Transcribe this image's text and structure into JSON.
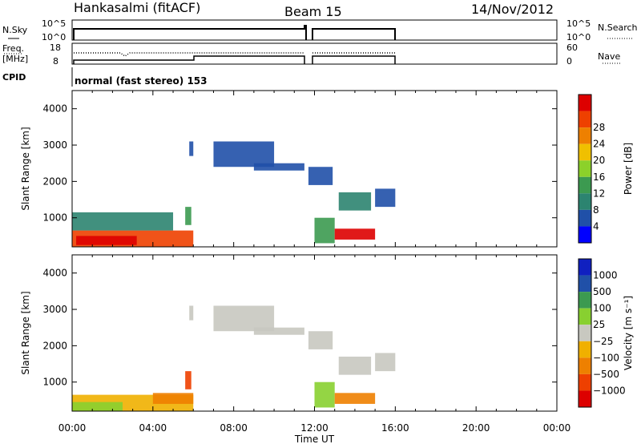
{
  "header": {
    "station": "Hankasalmi (fitACF)",
    "beam": "Beam 15",
    "date": "14/Nov/2012"
  },
  "strip_panels": {
    "nsky": {
      "left_label": "N.Sky",
      "ticks_left": [
        "10^5",
        "10^0"
      ],
      "ticks_right": [
        "10^5",
        "10^0"
      ],
      "right_label": "N.Search"
    },
    "freq": {
      "left_label_top": "Freq.",
      "left_label_unit": "[MHz]",
      "ticks_left": [
        "18",
        "8"
      ],
      "ticks_right": [
        "60",
        "0"
      ],
      "right_label": "Nave"
    },
    "cpid": {
      "label": "CPID",
      "text": "normal (fast stereo) 153"
    }
  },
  "colors": {
    "power": [
      "#0000ff",
      "#2050a8",
      "#2c8470",
      "#3c9a50",
      "#8cd12a",
      "#f0c000",
      "#ee8000",
      "#ee4000",
      "#dd0000"
    ],
    "velocity": [
      "#dd0000",
      "#ee4000",
      "#ee8000",
      "#f0b000",
      "#c8c8c0",
      "#88d030",
      "#3c9a50",
      "#2050a8",
      "#1020c0"
    ]
  },
  "chart_data": [
    {
      "type": "heatmap",
      "name": "power",
      "title": "",
      "xlabel": "",
      "ylabel": "Slant Range [km]",
      "xlim": [
        0,
        24
      ],
      "ylim": [
        200,
        4500
      ],
      "x_ticks": [
        "00:00",
        "04:00",
        "08:00",
        "12:00",
        "16:00",
        "20:00",
        "00:00"
      ],
      "y_ticks": [
        "1000",
        "2000",
        "3000",
        "4000"
      ],
      "colorbar": {
        "label": "Power [dB]",
        "ticks": [
          "4",
          "8",
          "12",
          "16",
          "20",
          "24",
          "28"
        ]
      },
      "regions": [
        {
          "t": [
            0.0,
            6.0
          ],
          "r": [
            200,
            650
          ],
          "level": 7
        },
        {
          "t": [
            0.2,
            3.2
          ],
          "r": [
            250,
            500
          ],
          "level": 8
        },
        {
          "t": [
            0.0,
            5.0
          ],
          "r": [
            650,
            1150
          ],
          "level": 2
        },
        {
          "t": [
            5.6,
            5.9
          ],
          "r": [
            800,
            1300
          ],
          "level": 3
        },
        {
          "t": [
            5.8,
            6.0
          ],
          "r": [
            2700,
            3100
          ],
          "level": 1
        },
        {
          "t": [
            7.0,
            10.0
          ],
          "r": [
            2400,
            3100
          ],
          "level": 1
        },
        {
          "t": [
            9.0,
            11.5
          ],
          "r": [
            2300,
            2500
          ],
          "level": 1
        },
        {
          "t": [
            11.7,
            12.9
          ],
          "r": [
            1900,
            2400
          ],
          "level": 1
        },
        {
          "t": [
            12.0,
            13.0
          ],
          "r": [
            300,
            1000
          ],
          "level": 3
        },
        {
          "t": [
            13.0,
            15.0
          ],
          "r": [
            400,
            700
          ],
          "level": 8
        },
        {
          "t": [
            13.2,
            14.8
          ],
          "r": [
            1200,
            1700
          ],
          "level": 2
        },
        {
          "t": [
            15.0,
            16.0
          ],
          "r": [
            1300,
            1800
          ],
          "level": 1
        }
      ]
    },
    {
      "type": "heatmap",
      "name": "velocity",
      "title": "",
      "xlabel": "Time UT",
      "ylabel": "Slant Range [km]",
      "xlim": [
        0,
        24
      ],
      "ylim": [
        200,
        4500
      ],
      "x_ticks": [
        "00:00",
        "04:00",
        "08:00",
        "12:00",
        "16:00",
        "20:00",
        "00:00"
      ],
      "y_ticks": [
        "1000",
        "2000",
        "3000",
        "4000"
      ],
      "colorbar": {
        "label": "Velocity [m s⁻¹]",
        "ticks": [
          "1000",
          "500",
          "100",
          "25",
          "−25",
          "−100",
          "−500",
          "−1000"
        ]
      },
      "regions": [
        {
          "t": [
            0.0,
            6.0
          ],
          "r": [
            200,
            650
          ],
          "level": 3
        },
        {
          "t": [
            0.0,
            2.5
          ],
          "r": [
            200,
            450
          ],
          "level": 5
        },
        {
          "t": [
            4.0,
            6.0
          ],
          "r": [
            400,
            700
          ],
          "level": 2
        },
        {
          "t": [
            5.6,
            5.9
          ],
          "r": [
            800,
            1300
          ],
          "level": 1
        },
        {
          "t": [
            5.8,
            6.0
          ],
          "r": [
            2700,
            3100
          ],
          "level": 4
        },
        {
          "t": [
            7.0,
            10.0
          ],
          "r": [
            2400,
            3100
          ],
          "level": 4
        },
        {
          "t": [
            9.0,
            11.5
          ],
          "r": [
            2300,
            2500
          ],
          "level": 4
        },
        {
          "t": [
            11.7,
            12.9
          ],
          "r": [
            1900,
            2400
          ],
          "level": 4
        },
        {
          "t": [
            12.0,
            13.0
          ],
          "r": [
            300,
            1000
          ],
          "level": 5
        },
        {
          "t": [
            13.0,
            15.0
          ],
          "r": [
            400,
            700
          ],
          "level": 2
        },
        {
          "t": [
            13.2,
            14.8
          ],
          "r": [
            1200,
            1700
          ],
          "level": 4
        },
        {
          "t": [
            15.0,
            16.0
          ],
          "r": [
            1300,
            1800
          ],
          "level": 4
        }
      ]
    }
  ]
}
